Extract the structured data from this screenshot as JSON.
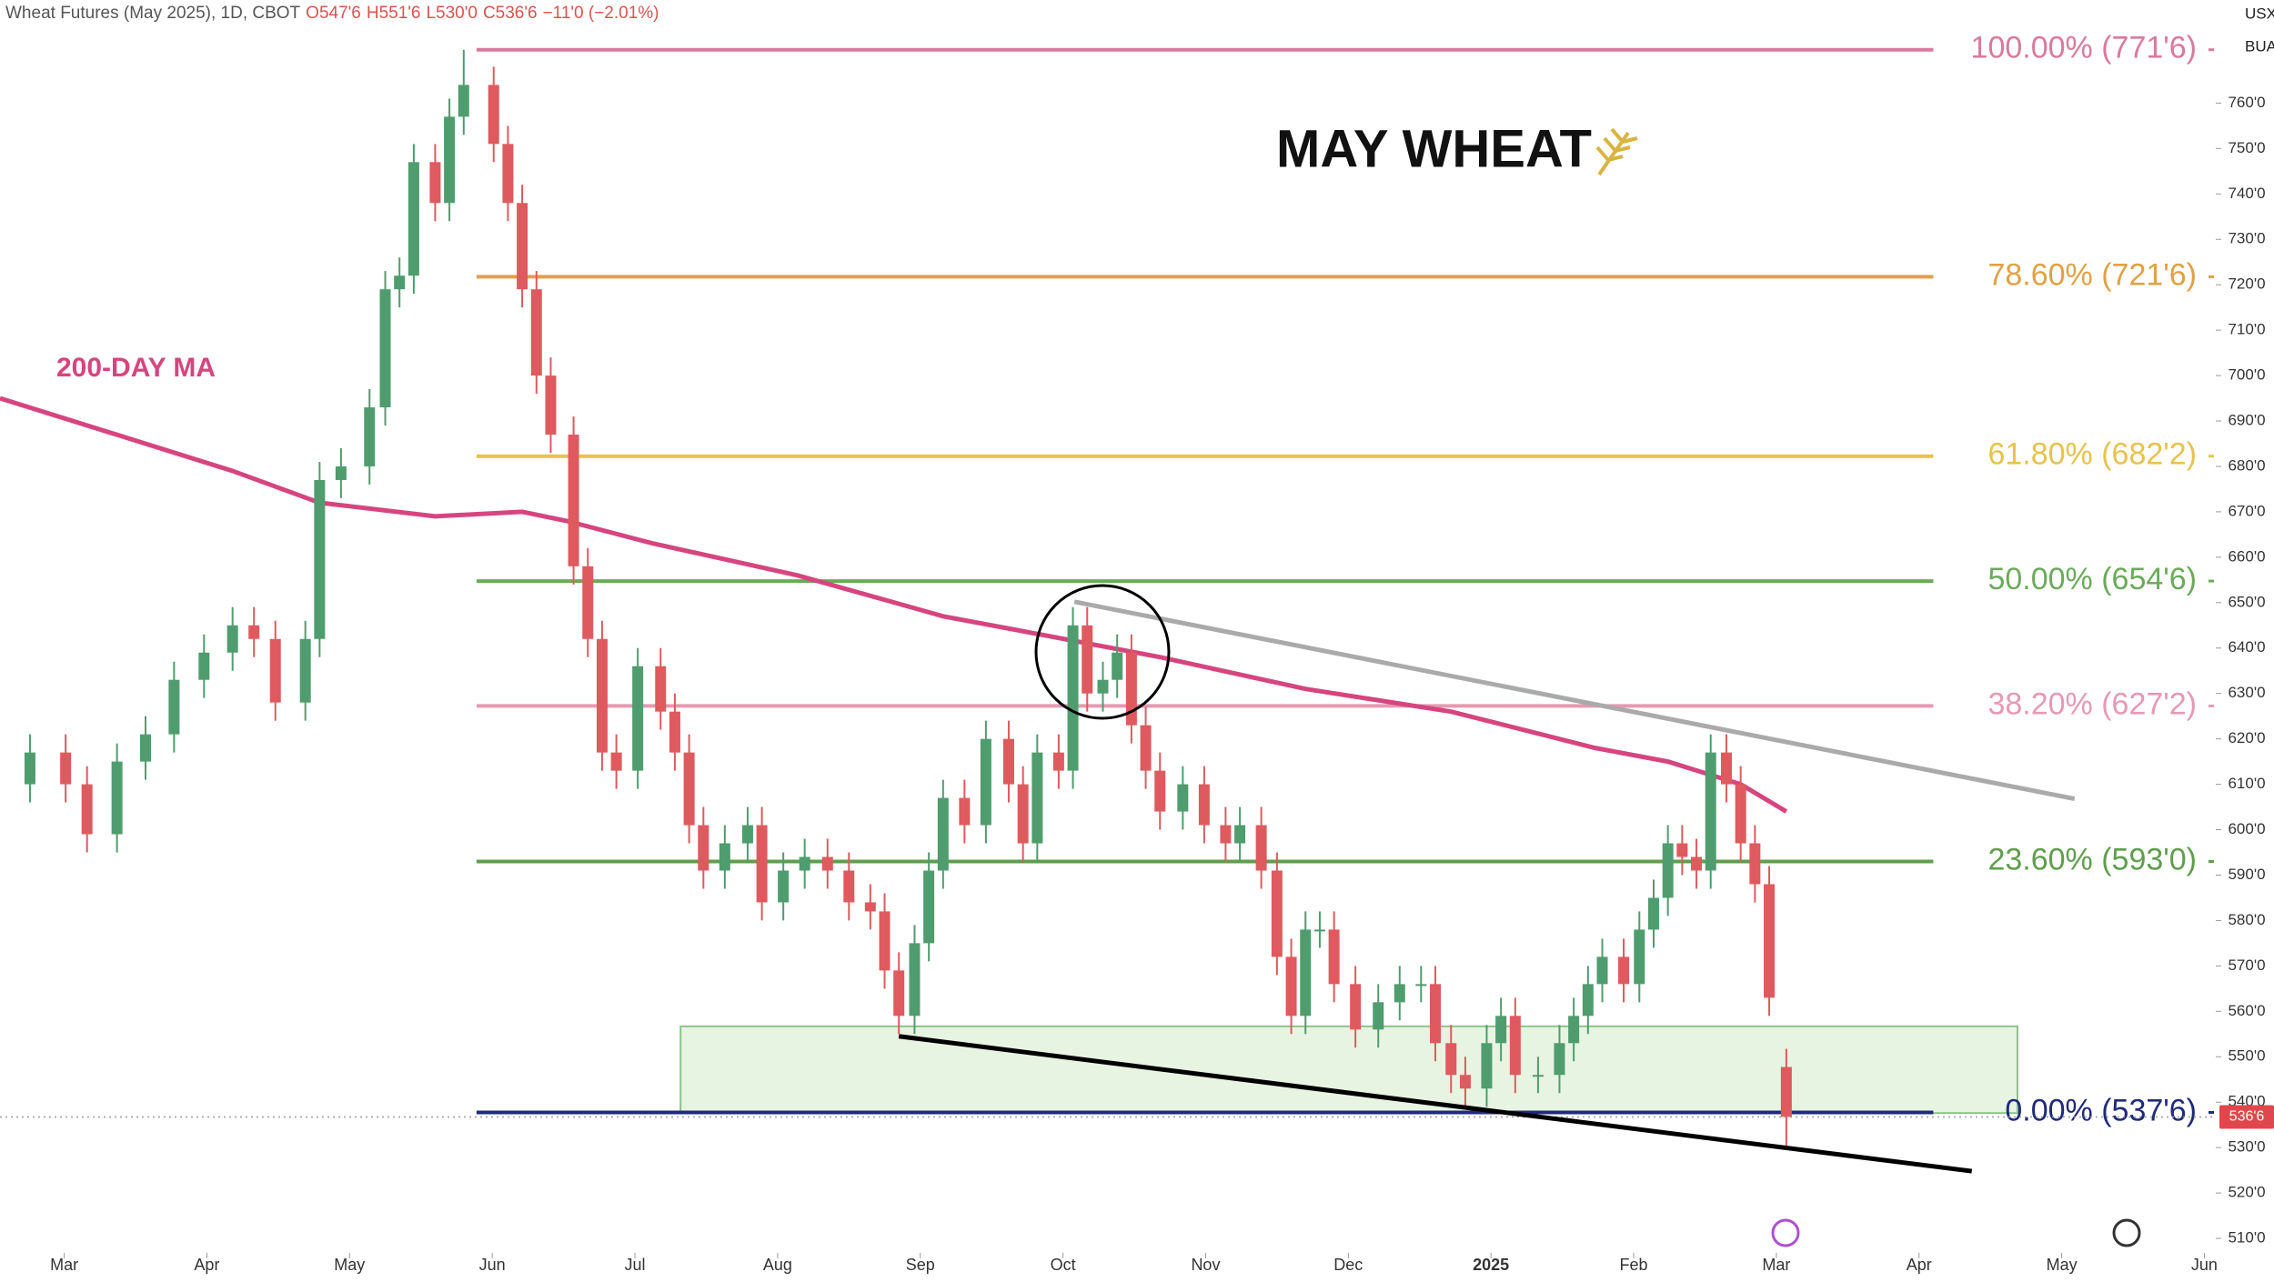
{
  "header": {
    "title": "Wheat Futures (May 2025), 1D, CBOT",
    "open": "O547'6",
    "high": "H551'6",
    "low": "L530'0",
    "close": "C536'6",
    "change": "−11'0 (−2.01%)"
  },
  "chart_data": {
    "type": "candlestick",
    "title": "MAY WHEAT",
    "x": [
      -0.24,
      0.01,
      0.16,
      0.37,
      0.57,
      0.77,
      0.98,
      1.18,
      1.33,
      1.48,
      1.69,
      1.79,
      1.94,
      2.14,
      2.25,
      2.35,
      2.45,
      2.6,
      2.7,
      2.8,
      3.01,
      3.11,
      3.21,
      3.31,
      3.41,
      3.57,
      3.67,
      3.77,
      3.87,
      4.02,
      4.18,
      4.28,
      4.38,
      4.48,
      4.63,
      4.79,
      4.89,
      5.04,
      5.19,
      5.35,
      5.5,
      5.65,
      5.75,
      5.85,
      5.96,
      6.06,
      6.16,
      6.31,
      6.46,
      6.62,
      6.72,
      6.82,
      6.97,
      7.07,
      7.17,
      7.28,
      7.38,
      7.48,
      7.58,
      7.68,
      7.84,
      7.99,
      8.14,
      8.24,
      8.39,
      8.5,
      8.6,
      8.7,
      8.8,
      8.9,
      9.05,
      9.21,
      9.36,
      9.51,
      9.61,
      9.72,
      9.82,
      9.97,
      10.07,
      10.17,
      10.33,
      10.48,
      10.58,
      10.68,
      10.78,
      10.93,
      11.04,
      11.14,
      11.24,
      11.34,
      11.44,
      11.54,
      11.65,
      11.75,
      11.85,
      11.95,
      12.07
    ],
    "open": [
      610,
      617,
      610,
      599,
      615,
      621,
      633,
      639,
      645,
      642,
      628,
      642,
      677,
      680,
      693,
      719,
      722,
      747,
      738,
      757,
      764,
      751,
      738,
      719,
      700,
      687,
      658,
      642,
      617,
      613,
      636,
      626,
      617,
      601,
      591,
      597,
      601,
      584,
      591,
      594,
      591,
      584,
      582,
      569,
      559,
      575,
      591,
      607,
      601,
      620,
      610,
      597,
      617,
      613,
      645,
      630,
      633,
      639,
      623,
      613,
      604,
      610,
      601,
      597,
      601,
      591,
      572,
      559,
      578,
      578,
      566,
      556,
      562,
      566,
      566,
      553,
      546,
      543,
      553,
      559,
      546,
      546,
      553,
      559,
      566,
      572,
      566,
      578,
      585,
      597,
      594,
      591,
      617,
      610,
      597,
      588,
      547.75
    ],
    "high": [
      621,
      621,
      614,
      619,
      625,
      637,
      643,
      649,
      649,
      646,
      646,
      681,
      684,
      697,
      723,
      726,
      751,
      751,
      761,
      771.75,
      768,
      755,
      742,
      723,
      704,
      691,
      662,
      646,
      621,
      640,
      640,
      630,
      621,
      605,
      601,
      605,
      605,
      595,
      598,
      598,
      595,
      588,
      586,
      573,
      579,
      595,
      611,
      611,
      624,
      624,
      614,
      621,
      621,
      649,
      649,
      637,
      643,
      643,
      627,
      617,
      614,
      614,
      605,
      605,
      605,
      595,
      576,
      582,
      582,
      582,
      570,
      566,
      570,
      570,
      570,
      557,
      550,
      557,
      563,
      563,
      550,
      557,
      563,
      570,
      576,
      576,
      582,
      589,
      601,
      601,
      598,
      621,
      621,
      614,
      601,
      592,
      551.75
    ],
    "low": [
      606,
      606,
      595,
      595,
      611,
      617,
      629,
      635,
      638,
      624,
      624,
      638,
      673,
      676,
      689,
      715,
      718,
      734,
      734,
      753,
      747,
      734,
      715,
      696,
      683,
      654,
      638,
      613,
      609,
      609,
      622,
      613,
      597,
      587,
      587,
      593,
      580,
      580,
      587,
      587,
      580,
      578,
      565,
      555,
      555,
      571,
      587,
      597,
      597,
      606,
      593,
      593,
      609,
      609,
      626,
      626,
      629,
      619,
      609,
      600,
      600,
      597,
      593,
      593,
      587,
      568,
      555,
      555,
      574,
      562,
      552,
      552,
      558,
      562,
      549,
      542,
      539,
      539,
      549,
      542,
      542,
      542,
      549,
      555,
      562,
      562,
      562,
      574,
      581,
      590,
      587,
      587,
      606,
      593,
      584,
      559,
      530
    ],
    "close": [
      617,
      610,
      599,
      615,
      621,
      633,
      639,
      645,
      642,
      628,
      642,
      677,
      680,
      693,
      719,
      722,
      747,
      738,
      757,
      764,
      751,
      738,
      719,
      700,
      687,
      658,
      642,
      617,
      613,
      636,
      626,
      617,
      601,
      591,
      597,
      601,
      584,
      591,
      594,
      591,
      584,
      582,
      569,
      559,
      575,
      591,
      607,
      601,
      620,
      610,
      597,
      617,
      613,
      645,
      630,
      633,
      639,
      623,
      613,
      604,
      610,
      601,
      597,
      601,
      591,
      572,
      559,
      578,
      578,
      566,
      556,
      562,
      566,
      566,
      553,
      546,
      543,
      553,
      559,
      546,
      546,
      553,
      559,
      566,
      572,
      566,
      578,
      585,
      597,
      594,
      591,
      617,
      610,
      597,
      588,
      563,
      536.75
    ],
    "up_color": "#4f9d6e",
    "down_color": "#df5a5e",
    "xlim": [
      -0.45,
      15.08
    ],
    "xticks": [
      {
        "value": 0,
        "label": "Mar"
      },
      {
        "value": 1,
        "label": "Apr"
      },
      {
        "value": 2,
        "label": "May"
      },
      {
        "value": 3,
        "label": "Jun"
      },
      {
        "value": 4,
        "label": "Jul"
      },
      {
        "value": 5,
        "label": "Aug"
      },
      {
        "value": 6,
        "label": "Sep"
      },
      {
        "value": 7,
        "label": "Oct"
      },
      {
        "value": 8,
        "label": "Nov"
      },
      {
        "value": 9,
        "label": "Dec"
      },
      {
        "value": 10,
        "label": "2025"
      },
      {
        "value": 11,
        "label": "Feb"
      },
      {
        "value": 12,
        "label": "Mar"
      },
      {
        "value": 13,
        "label": "Apr"
      },
      {
        "value": 14,
        "label": "May"
      },
      {
        "value": 15,
        "label": "Jun"
      }
    ],
    "ylim": [
      500.4,
      782.7
    ],
    "yticks": [
      {
        "value": 510,
        "label": "510'0"
      },
      {
        "value": 520,
        "label": "520'0"
      },
      {
        "value": 530,
        "label": "530'0"
      },
      {
        "value": 540,
        "label": "540'0"
      },
      {
        "value": 550,
        "label": "550'0"
      },
      {
        "value": 560,
        "label": "560'0"
      },
      {
        "value": 570,
        "label": "570'0"
      },
      {
        "value": 580,
        "label": "580'0"
      },
      {
        "value": 590,
        "label": "590'0"
      },
      {
        "value": 600,
        "label": "600'0"
      },
      {
        "value": 610,
        "label": "610'0"
      },
      {
        "value": 620,
        "label": "620'0"
      },
      {
        "value": 630,
        "label": "630'0"
      },
      {
        "value": 640,
        "label": "640'0"
      },
      {
        "value": 650,
        "label": "650'0"
      },
      {
        "value": 660,
        "label": "660'0"
      },
      {
        "value": 670,
        "label": "670'0"
      },
      {
        "value": 680,
        "label": "680'0"
      },
      {
        "value": 690,
        "label": "690'0"
      },
      {
        "value": 700,
        "label": "700'0"
      },
      {
        "value": 710,
        "label": "710'0"
      },
      {
        "value": 720,
        "label": "720'0"
      },
      {
        "value": 730,
        "label": "730'0"
      },
      {
        "value": 740,
        "label": "740'0"
      },
      {
        "value": 750,
        "label": "750'0"
      },
      {
        "value": 760,
        "label": "760'0"
      }
    ],
    "currency": "USX",
    "unit": "BUA",
    "last_price_label": "536'6",
    "moving_average": {
      "name": "200-DAY MA",
      "color": "#d6457f",
      "x": [
        -0.45,
        0.57,
        1.18,
        1.79,
        2.6,
        3.21,
        3.52,
        4.13,
        5.14,
        6.16,
        6.67,
        7.68,
        8.7,
        9.72,
        10.73,
        11.24,
        11.75,
        12.07
      ],
      "values": [
        695,
        685,
        679,
        672,
        669,
        670,
        668,
        663,
        656,
        647,
        644,
        638,
        631,
        626,
        618,
        615,
        610,
        604
      ]
    },
    "fibonacci": {
      "start_x": 2.89,
      "end_x": 13.1,
      "levels": [
        {
          "value": 771.75,
          "label": "100.00% (771'6)",
          "color": "#d97a9c"
        },
        {
          "value": 721.75,
          "label": "78.60% (721'6)",
          "color": "#e0a145"
        },
        {
          "value": 682.25,
          "label": "61.80% (682'2)",
          "color": "#e8c24c"
        },
        {
          "value": 654.75,
          "label": "50.00% (654'6)",
          "color": "#6aab5a"
        },
        {
          "value": 627.25,
          "label": "38.20% (627'2)",
          "color": "#e69ab2"
        },
        {
          "value": 593,
          "label": "23.60% (593'0)",
          "color": "#5f9e4d"
        },
        {
          "value": 537.75,
          "label": "0.00% (537'6)",
          "color": "#1f2a7a"
        }
      ]
    },
    "trendlines": [
      {
        "color": "#aaaaaa",
        "x": [
          7.08,
          14.09
        ],
        "values": [
          650.2,
          606.8
        ]
      },
      {
        "color": "#000000",
        "x": [
          5.85,
          13.37
        ],
        "values": [
          554.5,
          524.8
        ]
      }
    ],
    "zone": {
      "x": [
        4.32,
        13.69
      ],
      "values": [
        556.7,
        537.6
      ],
      "color": "#e7f4e2"
    }
  }
}
